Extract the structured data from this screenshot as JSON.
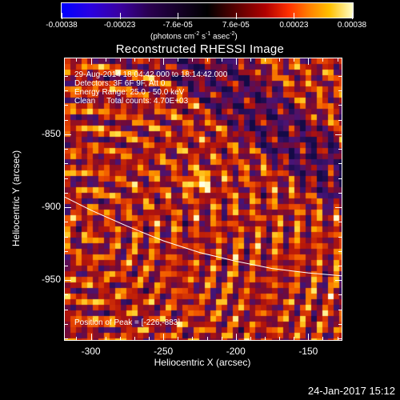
{
  "colorbar": {
    "tick_labels": [
      "-0.00038",
      "-0.00023",
      "-7.6e-05",
      "7.6e-05",
      "0.00023",
      "0.00038"
    ],
    "units_prefix": "(photons cm",
    "units_exp1": "-2",
    "units_mid": " s",
    "units_exp2": "-1",
    "units_mid2": " asec",
    "units_exp3": "-2",
    "units_suffix": ")"
  },
  "title": "Reconstructed RHESSI Image",
  "annotations": {
    "time_range": "29-Aug-2014 18:04:42.000 to 18:14:42.000",
    "detectors": "Detectors: 3F 6F 9F, Att 0",
    "energy_range": "Energy Range: 25.0 - 50.0 keV",
    "method": "Clean",
    "total_counts": "Total counts: 4.70E+03",
    "peak": "Position of Peak = [-226,-883]"
  },
  "axes": {
    "xlabel": "Heliocentric X (arcsec)",
    "ylabel": "Heliocentric Y (arcsec)",
    "xticks": [
      "-300",
      "-250",
      "-200",
      "-150"
    ],
    "yticks": [
      "-850",
      "-900",
      "-950"
    ]
  },
  "timestamp": "24-Jan-2017 15:12",
  "chart_data": {
    "type": "heatmap",
    "title": "Reconstructed RHESSI Image",
    "xlabel": "Heliocentric X (arcsec)",
    "ylabel": "Heliocentric Y (arcsec)",
    "xlim": [
      -318,
      -127
    ],
    "ylim": [
      -991,
      -798
    ],
    "xticks": [
      -300,
      -250,
      -200,
      -150
    ],
    "yticks": [
      -850,
      -900,
      -950
    ],
    "color_range": [
      -0.00038,
      0.00038
    ],
    "peak_position": [
      -226,
      -883
    ],
    "limb_curve": {
      "x": [
        -318,
        -300,
        -275,
        -250,
        -225,
        -200,
        -175,
        -150,
        -127
      ],
      "y": [
        -893,
        -902,
        -913,
        -923,
        -931,
        -937,
        -942,
        -945,
        -947
      ]
    },
    "colors": {
      "limb": "#ffffff",
      "background": "#000000"
    }
  }
}
